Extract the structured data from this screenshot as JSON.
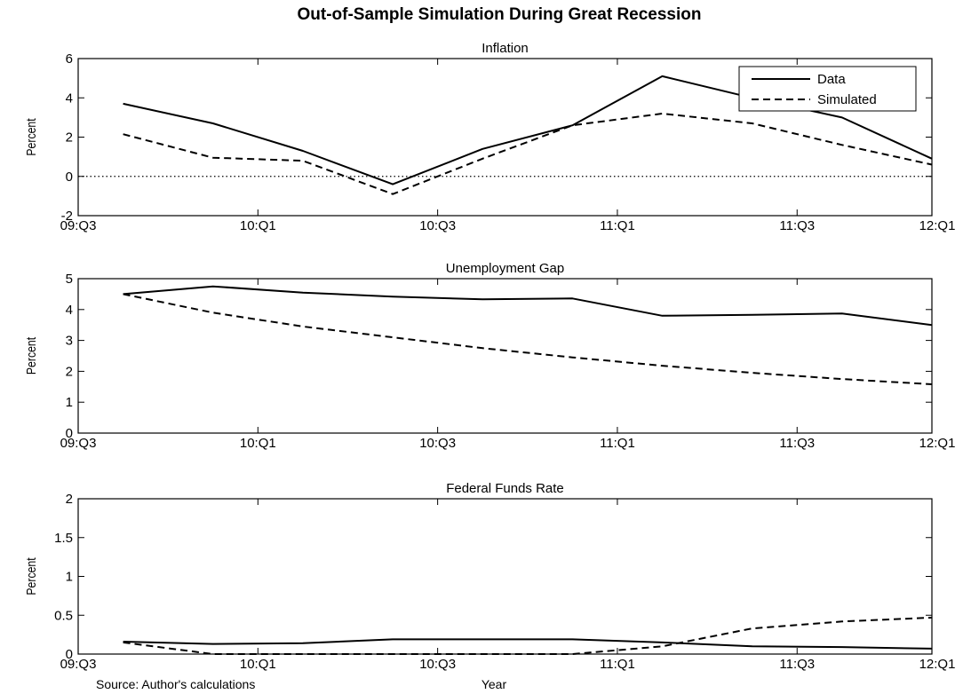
{
  "figure": {
    "title": "Out-of-Sample Simulation During Great Recession",
    "source": "Source: Author's calculations",
    "xlabel": "Year"
  },
  "chart_data": [
    {
      "type": "line",
      "title": "Inflation",
      "ylabel": "Percent",
      "xlim": [
        0,
        9.5
      ],
      "ylim": [
        -2,
        6
      ],
      "yticks": [
        -2,
        0,
        2,
        4,
        6
      ],
      "xticks": [
        {
          "x": 0,
          "label": "09:Q3"
        },
        {
          "x": 2,
          "label": "10:Q1"
        },
        {
          "x": 4,
          "label": "10:Q3"
        },
        {
          "x": 6,
          "label": "11:Q1"
        },
        {
          "x": 8,
          "label": "11:Q3"
        },
        {
          "x": 10,
          "label": "12:Q1"
        }
      ],
      "x": [
        0.5,
        1.5,
        2.5,
        3.5,
        4.5,
        5.5,
        6.5,
        7.5,
        8.5,
        9.5
      ],
      "zero_line": true,
      "legend": {
        "position": "top-right",
        "entries": [
          "Data",
          "Simulated"
        ]
      },
      "series": [
        {
          "name": "Data",
          "style": "solid",
          "values": [
            3.7,
            2.7,
            1.3,
            -0.4,
            1.4,
            2.6,
            5.1,
            4.0,
            3.0,
            0.9
          ]
        },
        {
          "name": "Simulated",
          "style": "dashed",
          "values": [
            2.15,
            0.95,
            0.8,
            -0.9,
            0.9,
            2.6,
            3.2,
            2.7,
            1.6,
            0.6
          ]
        }
      ]
    },
    {
      "type": "line",
      "title": "Unemployment Gap",
      "ylabel": "Percent",
      "xlim": [
        0,
        9.5
      ],
      "ylim": [
        0,
        5
      ],
      "yticks": [
        0,
        1,
        2,
        3,
        4,
        5
      ],
      "xticks": [
        {
          "x": 0,
          "label": "09:Q3"
        },
        {
          "x": 2,
          "label": "10:Q1"
        },
        {
          "x": 4,
          "label": "10:Q3"
        },
        {
          "x": 6,
          "label": "11:Q1"
        },
        {
          "x": 8,
          "label": "11:Q3"
        },
        {
          "x": 10,
          "label": "12:Q1"
        }
      ],
      "x": [
        0.5,
        1.5,
        2.5,
        3.5,
        4.5,
        5.5,
        6.5,
        7.5,
        8.5,
        9.5
      ],
      "series": [
        {
          "name": "Data",
          "style": "solid",
          "values": [
            4.5,
            4.75,
            4.55,
            4.42,
            4.33,
            4.36,
            3.8,
            3.83,
            3.87,
            3.5
          ]
        },
        {
          "name": "Simulated",
          "style": "dashed",
          "values": [
            4.5,
            3.9,
            3.45,
            3.1,
            2.75,
            2.45,
            2.18,
            1.95,
            1.75,
            1.58
          ]
        }
      ]
    },
    {
      "type": "line",
      "title": "Federal Funds Rate",
      "ylabel": "Percent",
      "xlim": [
        0,
        9.5
      ],
      "ylim": [
        0,
        2
      ],
      "yticks": [
        0,
        0.5,
        1,
        1.5,
        2
      ],
      "xticks": [
        {
          "x": 0,
          "label": "09:Q3"
        },
        {
          "x": 2,
          "label": "10:Q1"
        },
        {
          "x": 4,
          "label": "10:Q3"
        },
        {
          "x": 6,
          "label": "11:Q1"
        },
        {
          "x": 8,
          "label": "11:Q3"
        },
        {
          "x": 10,
          "label": "12:Q1"
        }
      ],
      "x": [
        0.5,
        1.5,
        2.5,
        3.5,
        4.5,
        5.5,
        6.5,
        7.5,
        8.5,
        9.5
      ],
      "series": [
        {
          "name": "Data",
          "style": "solid",
          "values": [
            0.16,
            0.13,
            0.14,
            0.19,
            0.19,
            0.19,
            0.15,
            0.1,
            0.09,
            0.07
          ]
        },
        {
          "name": "Simulated",
          "style": "dashed",
          "values": [
            0.15,
            0.0,
            0.0,
            0.0,
            0.0,
            0.0,
            0.1,
            0.33,
            0.42,
            0.47
          ]
        }
      ]
    }
  ]
}
